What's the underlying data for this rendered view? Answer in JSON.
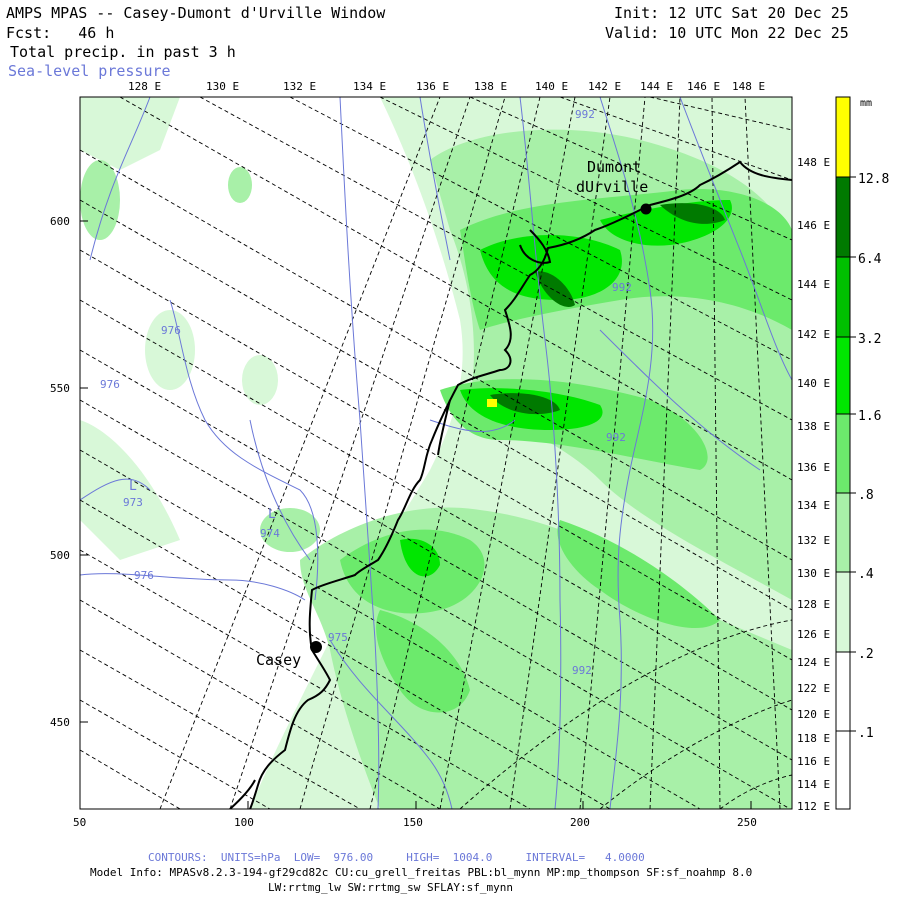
{
  "header": {
    "title": "AMPS MPAS -- Casey-Dumont d'Urville Window",
    "fcst_label": "Fcst:",
    "fcst_value": "46 h",
    "field1": "Total precip. in past 3 h",
    "field2": "Sea-level pressure",
    "init": "Init: 12 UTC Sat 20 Dec 25",
    "valid": "Valid: 10 UTC Mon 22 Dec 25"
  },
  "axes": {
    "top_lon_labels": [
      "128 E",
      "130 E",
      "132 E",
      "134 E",
      "136 E",
      "138 E",
      "140 E",
      "142 E",
      "144 E",
      "146 E",
      "148 E"
    ],
    "right_lon_labels": [
      "148 E",
      "146 E",
      "144 E",
      "142 E",
      "140 E",
      "138 E",
      "136 E",
      "134 E",
      "132 E",
      "130 E",
      "128 E",
      "126 E",
      "124 E",
      "122 E",
      "120 E",
      "118 E",
      "116 E",
      "114 E",
      "112 E"
    ],
    "x_ticks": [
      "50",
      "100",
      "150",
      "200",
      "250"
    ],
    "y_ticks": [
      "600",
      "550",
      "500",
      "450"
    ]
  },
  "places": [
    {
      "name": "Dumont",
      "name2": "dUrville"
    },
    {
      "name": "Casey",
      "name2": ""
    }
  ],
  "isobar_labels": [
    "992",
    "992",
    "992",
    "976",
    "976",
    "973",
    "974",
    "976",
    "975",
    "992"
  ],
  "lows": [
    "L",
    "L"
  ],
  "colorbar": {
    "unit": "mm",
    "levels": [
      "12.8",
      "6.4",
      "3.2",
      "1.6",
      ".8",
      ".4",
      ".2",
      ".1"
    ],
    "colors": [
      "#ffff00",
      "#007a00",
      "#00c000",
      "#00e600",
      "#6cea6c",
      "#a8f0a8",
      "#d8f8d8",
      "#ffffff"
    ]
  },
  "footer": {
    "contours": "CONTOURS:  UNITS=hPa  LOW=  976.00     HIGH=  1004.0     INTERVAL=   4.0000",
    "model1": "Model Info: MPASv8.2.3-194-gf29cd82c CU:cu_grell_freitas PBL:bl_mynn MP:mp_thompson SF:sf_noahmp 8.0",
    "model2": "LW:rrtmg_lw SW:rrtmg_sw SFLAY:sf_mynn"
  }
}
